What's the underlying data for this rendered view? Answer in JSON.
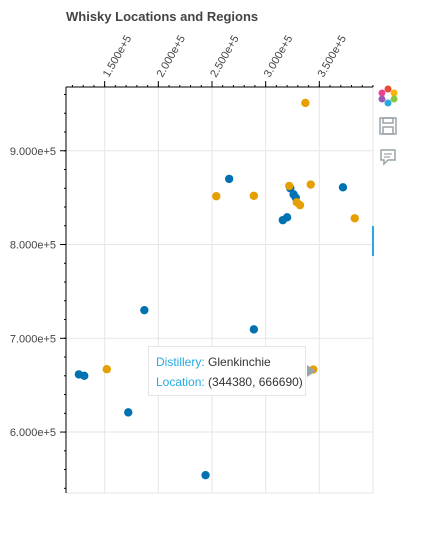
{
  "chart_data": {
    "type": "scatter",
    "title": "Whisky Locations and Regions",
    "xlabel": "",
    "ylabel": "",
    "xlim": [
      114000,
      400000
    ],
    "ylim": [
      535000,
      968000
    ],
    "x_ticks": [
      150000,
      200000,
      250000,
      300000,
      350000
    ],
    "x_tick_labels": [
      "1.500e+5",
      "2.000e+5",
      "2.500e+5",
      "3.000e+5",
      "3.500e+5"
    ],
    "y_ticks": [
      600000,
      700000,
      800000,
      900000
    ],
    "y_tick_labels": [
      "6.000e+5",
      "7.000e+5",
      "8.000e+5",
      "9.000e+5"
    ],
    "grid": true,
    "series": [
      {
        "color": "#0072b2",
        "points": [
          [
            126000,
            661500
          ],
          [
            131000,
            660000
          ],
          [
            172000,
            621000
          ],
          [
            187000,
            730000
          ],
          [
            244000,
            554000
          ],
          [
            266000,
            870000
          ],
          [
            289000,
            709500
          ],
          [
            316000,
            826000
          ],
          [
            320000,
            829000
          ],
          [
            323000,
            860000
          ],
          [
            326000,
            853500
          ],
          [
            328000,
            850000
          ],
          [
            372000,
            861000
          ]
        ]
      },
      {
        "color": "#e69f00",
        "points": [
          [
            152000,
            667000
          ],
          [
            254000,
            851500
          ],
          [
            289000,
            852000
          ],
          [
            322000,
            862500
          ],
          [
            329000,
            845000
          ],
          [
            332000,
            842000
          ],
          [
            337000,
            951000
          ],
          [
            342000,
            864000
          ],
          [
            344380,
            666690
          ],
          [
            383000,
            828000
          ]
        ]
      }
    ],
    "hover_point": [
      344380,
      666690
    ]
  },
  "tooltip": {
    "distillery_label": "Distillery:",
    "distillery_value": "Glenkinchie",
    "location_label": "Location:",
    "location_value": "(344380, 666690)"
  },
  "toolbar": {
    "tools": [
      "bokeh-logo-icon",
      "save-icon",
      "hover-tool-icon"
    ],
    "active_tool": "hover-tool-icon"
  }
}
